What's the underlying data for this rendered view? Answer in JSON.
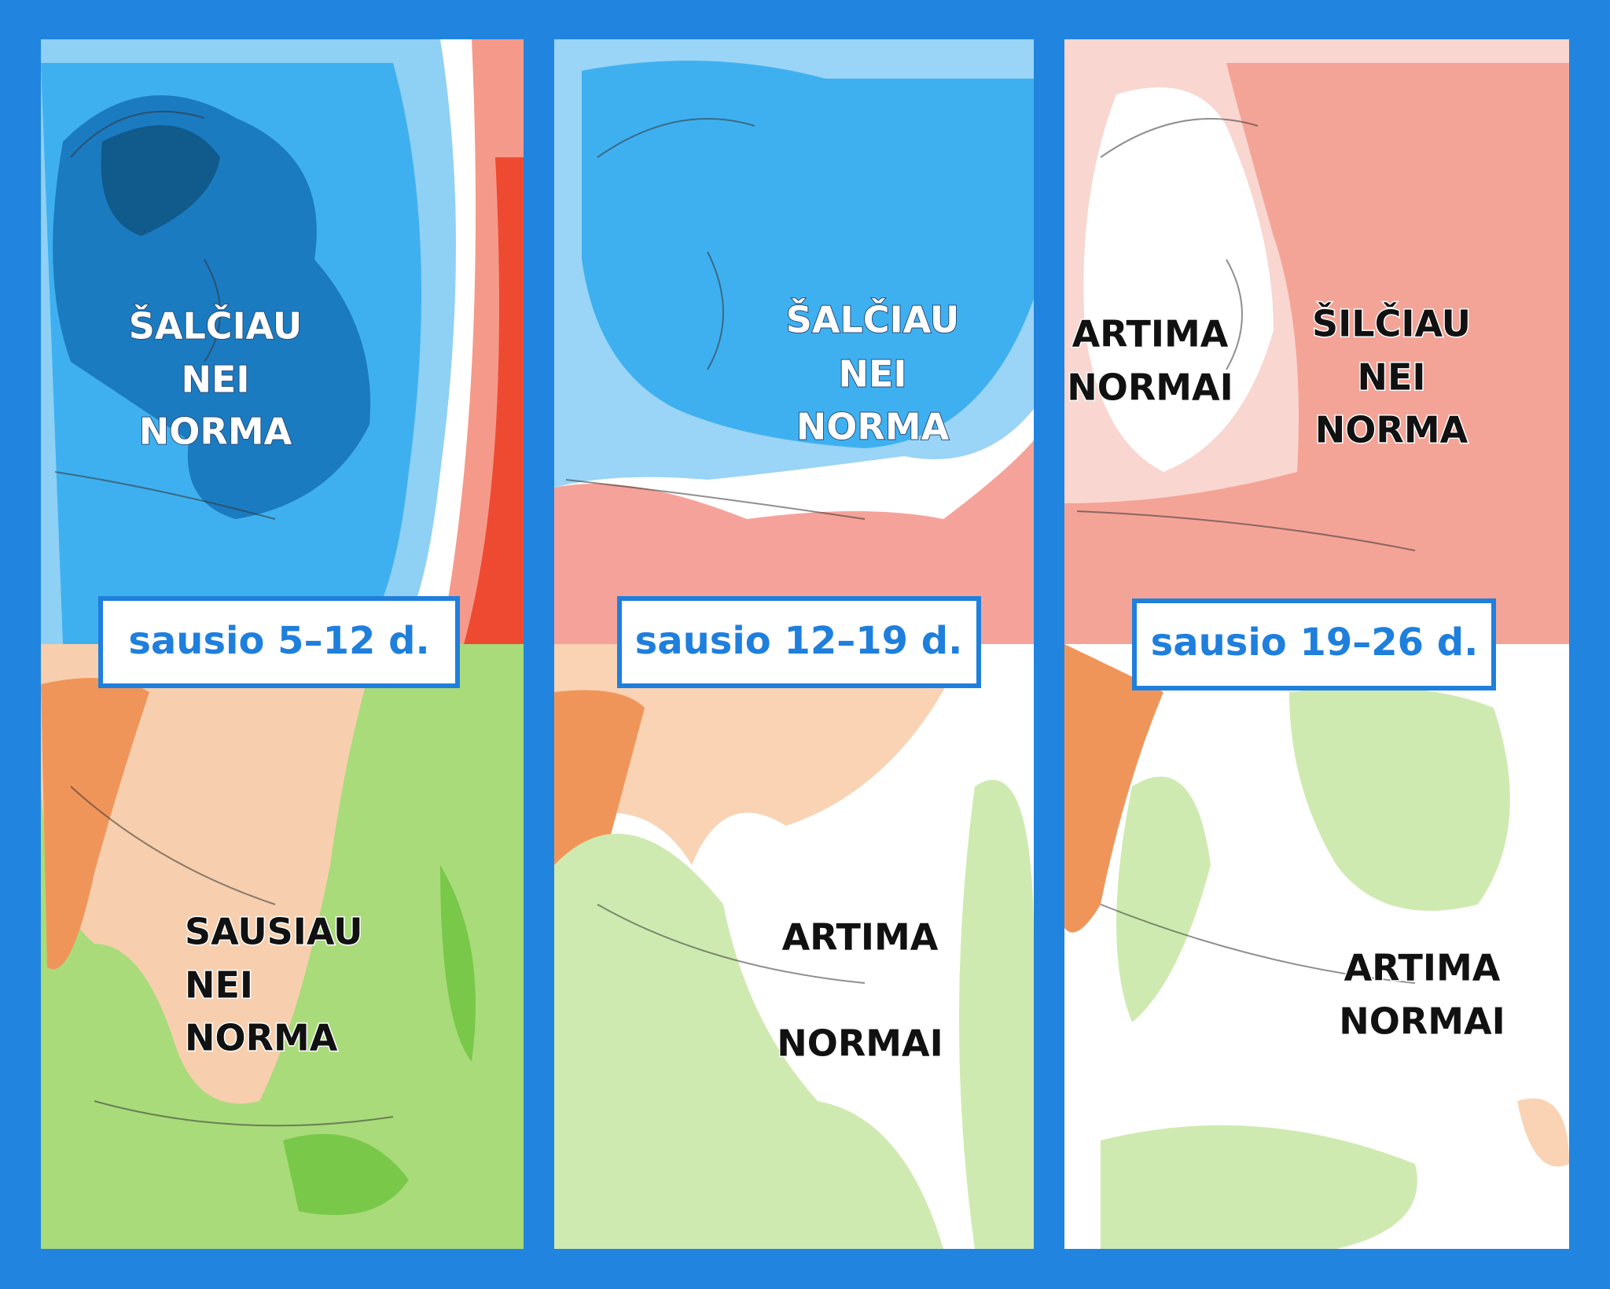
{
  "panels": [
    {
      "date": "sausio 5–12 d.",
      "temperature_labels": [
        {
          "lines": [
            "ŠALČIAU",
            "NEI",
            "NORMA"
          ]
        }
      ],
      "precipitation_labels": [
        {
          "lines": [
            "SAUSIAU",
            "NEI",
            "NORMA"
          ]
        }
      ]
    },
    {
      "date": "sausio 12–19 d.",
      "temperature_labels": [
        {
          "lines": [
            "ŠALČIAU",
            "NEI",
            "NORMA"
          ]
        }
      ],
      "precipitation_labels": [
        {
          "lines": [
            "ARTIMA",
            "NORMAI"
          ]
        }
      ]
    },
    {
      "date": "sausio 19–26 d.",
      "temperature_labels": [
        {
          "lines": [
            "ARTIMA",
            "NORMAI"
          ]
        },
        {
          "lines": [
            "ŠILČIAU",
            "NEI",
            "NORMA"
          ]
        }
      ],
      "precipitation_labels": [
        {
          "lines": [
            "ARTIMA",
            "NORMAI"
          ]
        }
      ]
    }
  ]
}
